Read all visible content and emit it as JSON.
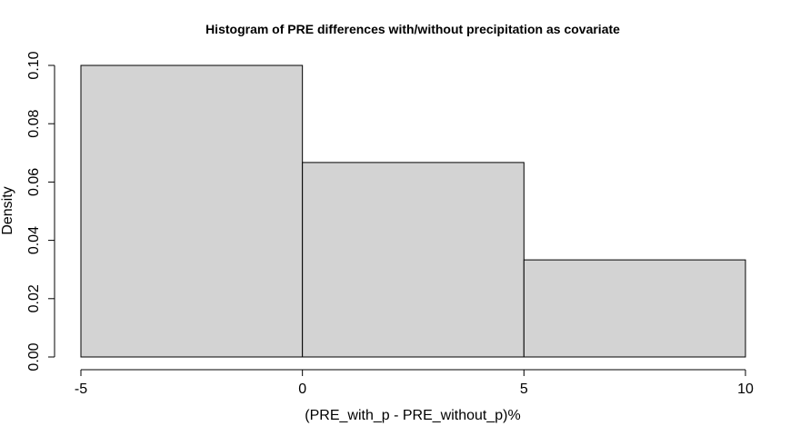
{
  "chart_data": {
    "type": "bar",
    "title": "Histogram of PRE differences with/without precipitation as covariate",
    "xlabel": "(PRE_with_p - PRE_without_p)%",
    "ylabel": "Density",
    "bins": [
      {
        "x0": -5,
        "x1": 0,
        "value": 0.1
      },
      {
        "x0": 0,
        "x1": 5,
        "value": 0.0667
      },
      {
        "x0": 5,
        "x1": 10,
        "value": 0.0333
      }
    ],
    "xlim": [
      -5,
      10
    ],
    "ylim": [
      0,
      0.1
    ],
    "x_ticks": [
      -5,
      0,
      5,
      10
    ],
    "x_tick_labels": [
      "-5",
      "0",
      "5",
      "10"
    ],
    "y_ticks": [
      0,
      0.02,
      0.04,
      0.06,
      0.08,
      0.1
    ],
    "y_tick_labels": [
      "0.00",
      "0.02",
      "0.04",
      "0.06",
      "0.08",
      "0.10"
    ],
    "bar_fill": "#d3d3d3",
    "bar_stroke": "#000000",
    "grid": false,
    "legend": "none"
  }
}
